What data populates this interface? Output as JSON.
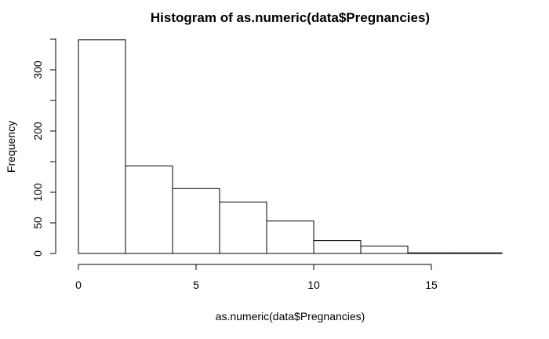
{
  "chart_data": {
    "type": "bar",
    "title": "Histogram of as.numeric(data$Pregnancies)",
    "xlabel": "as.numeric(data$Pregnancies)",
    "ylabel": "Frequency",
    "bins": [
      {
        "x0": 0,
        "x1": 2,
        "count": 349
      },
      {
        "x0": 2,
        "x1": 4,
        "count": 143
      },
      {
        "x0": 4,
        "x1": 6,
        "count": 106
      },
      {
        "x0": 6,
        "x1": 8,
        "count": 84
      },
      {
        "x0": 8,
        "x1": 10,
        "count": 53
      },
      {
        "x0": 10,
        "x1": 12,
        "count": 21
      },
      {
        "x0": 12,
        "x1": 14,
        "count": 12
      },
      {
        "x0": 14,
        "x1": 16,
        "count": 1
      },
      {
        "x0": 16,
        "x1": 18,
        "count": 1
      }
    ],
    "xlim": [
      0,
      18
    ],
    "ylim": [
      0,
      350
    ],
    "x_ticks": [
      0,
      5,
      10,
      15
    ],
    "y_ticks": [
      0,
      50,
      100,
      200,
      300
    ],
    "grid": false,
    "legend": "none"
  }
}
